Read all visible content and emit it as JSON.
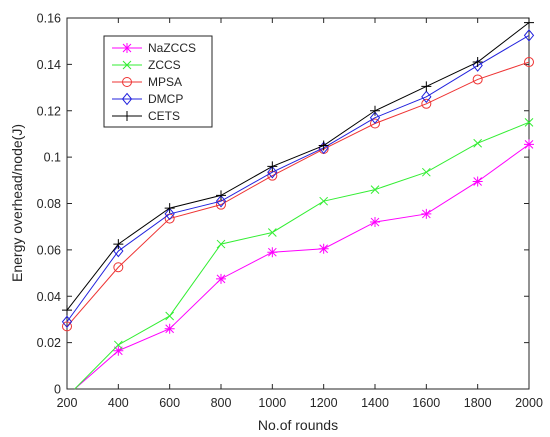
{
  "chart_data": {
    "type": "line",
    "title": "",
    "xlabel": "No.of rounds",
    "ylabel": "Energy overhead/node(J)",
    "xlim": [
      200,
      2000
    ],
    "ylim": [
      0,
      0.16
    ],
    "x": [
      200,
      400,
      600,
      800,
      1000,
      1200,
      1400,
      1600,
      1800,
      2000
    ],
    "x_ticks": [
      "200",
      "400",
      "600",
      "800",
      "1000",
      "1200",
      "1400",
      "1600",
      "1800",
      "2000"
    ],
    "y_ticks_values": [
      0,
      0.02,
      0.04,
      0.06,
      0.08,
      0.1,
      0.12,
      0.14,
      0.16
    ],
    "y_ticks": [
      "0",
      "0.02",
      "0.04",
      "0.06",
      "0.08",
      "0.1",
      "0.12",
      "0.14",
      "0.16"
    ],
    "grid": false,
    "legend_position": "top-left",
    "series": [
      {
        "name": "NaZCCS",
        "color": "#ff00ff",
        "marker": "asterisk",
        "x": [
          230,
          400,
          600,
          800,
          1000,
          1200,
          1400,
          1600,
          1800,
          2000
        ],
        "values": [
          0,
          0.0165,
          0.026,
          0.0475,
          0.059,
          0.0605,
          0.072,
          0.0755,
          0.0895,
          0.1055
        ]
      },
      {
        "name": "ZCCS",
        "color": "#33ee33",
        "marker": "x",
        "x": [
          230,
          400,
          600,
          800,
          1000,
          1200,
          1400,
          1600,
          1800,
          2000
        ],
        "values": [
          0,
          0.019,
          0.0315,
          0.0625,
          0.0675,
          0.081,
          0.086,
          0.0935,
          0.106,
          0.115
        ]
      },
      {
        "name": "MPSA",
        "color": "#ee3333",
        "marker": "circle",
        "x": [
          200,
          400,
          600,
          800,
          1000,
          1200,
          1400,
          1600,
          1800,
          2000
        ],
        "values": [
          0.027,
          0.0525,
          0.0735,
          0.0795,
          0.092,
          0.1035,
          0.1145,
          0.123,
          0.1335,
          0.141
        ]
      },
      {
        "name": "DMCP",
        "color": "#2222dd",
        "marker": "diamond",
        "x": [
          200,
          400,
          600,
          800,
          1000,
          1200,
          1400,
          1600,
          1800,
          2000
        ],
        "values": [
          0.029,
          0.0595,
          0.0755,
          0.081,
          0.0935,
          0.104,
          0.117,
          0.126,
          0.1395,
          0.1525
        ]
      },
      {
        "name": "CETS",
        "color": "#000000",
        "marker": "plus",
        "x": [
          200,
          400,
          600,
          800,
          1000,
          1200,
          1400,
          1600,
          1800,
          2000
        ],
        "values": [
          0.034,
          0.0625,
          0.078,
          0.0835,
          0.096,
          0.105,
          0.12,
          0.1305,
          0.141,
          0.158
        ]
      }
    ]
  }
}
